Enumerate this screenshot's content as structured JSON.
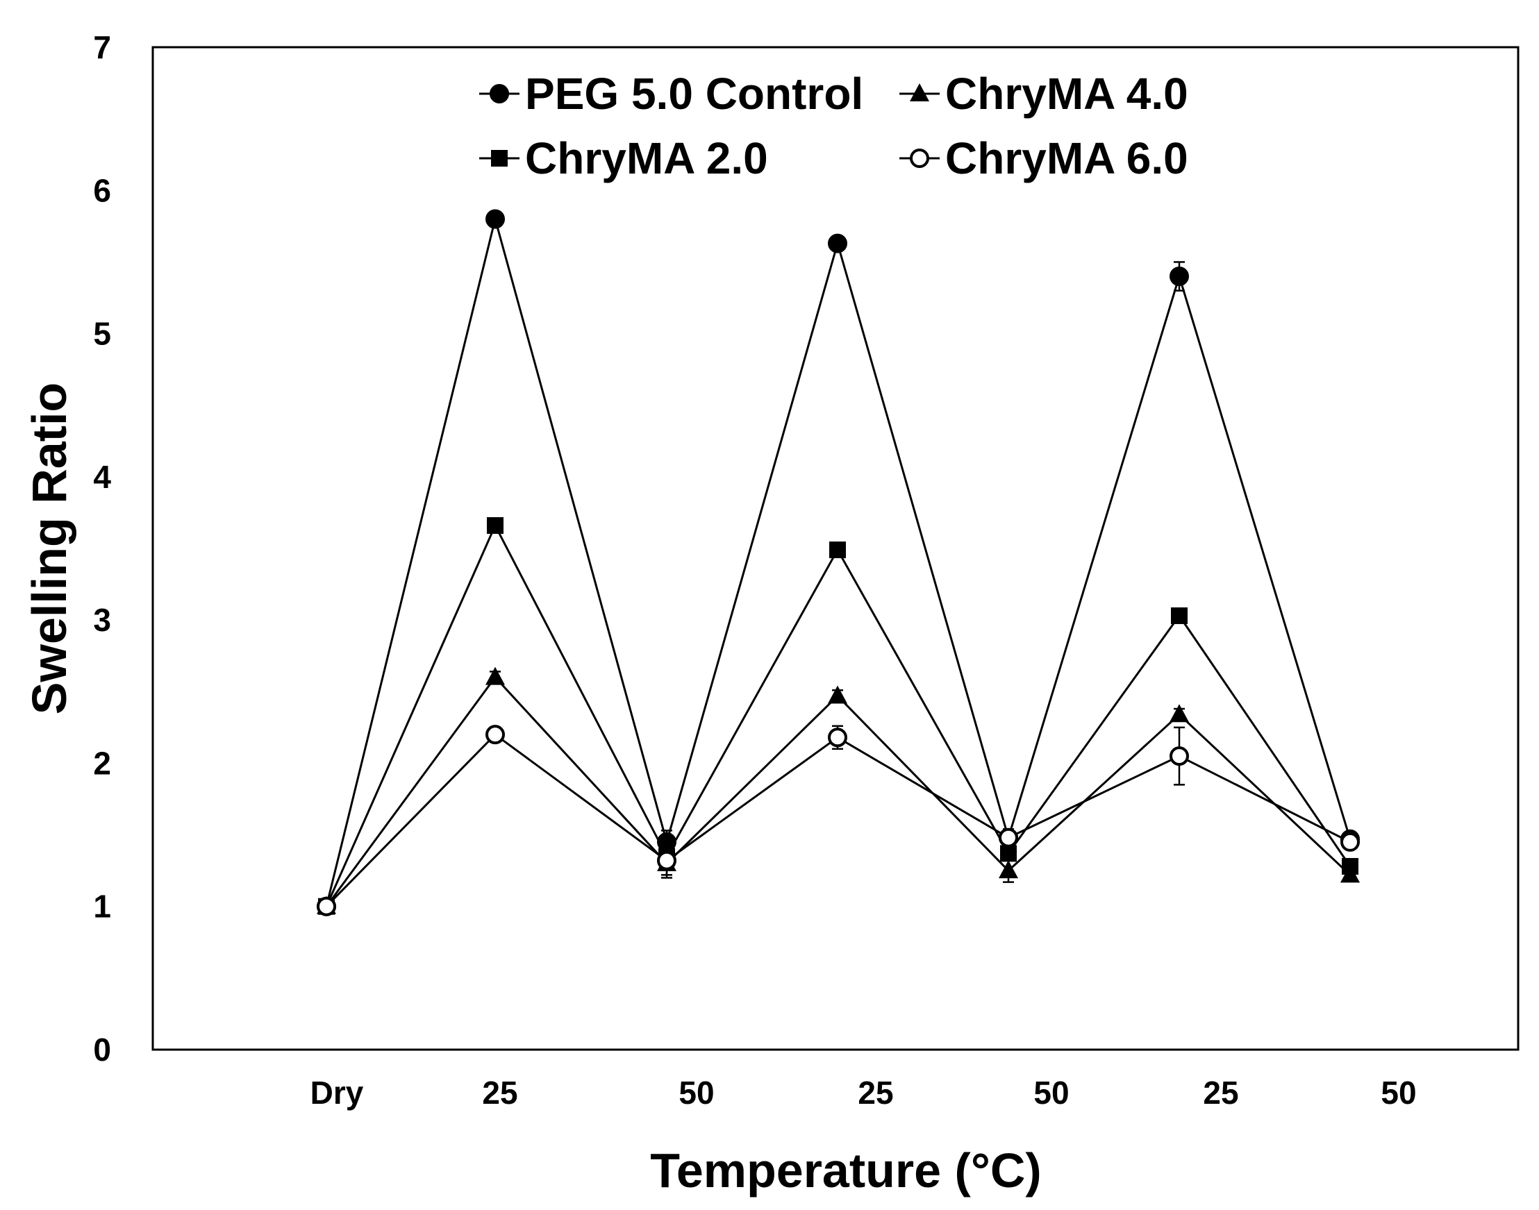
{
  "chart_data": {
    "type": "line",
    "title": "",
    "xlabel": "Temperature (°C)",
    "ylabel": "Swelling Ratio",
    "categories": [
      "Dry",
      "25",
      "50",
      "25",
      "50",
      "25",
      "50"
    ],
    "yticks": [
      "0",
      "1",
      "2",
      "3",
      "4",
      "5",
      "6",
      "7"
    ],
    "ylim": [
      0,
      7
    ],
    "grid": false,
    "legend_position": "top",
    "series": [
      {
        "name": "PEG 5.0 Control",
        "marker": "circle-filled",
        "values": [
          1.0,
          5.8,
          1.45,
          5.63,
          1.48,
          5.4,
          1.47
        ],
        "errors": [
          0.05,
          0.05,
          0.08,
          0.03,
          0.05,
          0.1,
          0.03
        ]
      },
      {
        "name": "ChryMA 2.0",
        "marker": "square-filled",
        "values": [
          1.0,
          3.66,
          1.35,
          3.49,
          1.37,
          3.03,
          1.28
        ],
        "errors": [
          0.05,
          0.04,
          0.05,
          0.05,
          0.05,
          0.04,
          0.03
        ]
      },
      {
        "name": "ChryMA 4.0",
        "marker": "triangle-filled",
        "values": [
          1.0,
          2.6,
          1.3,
          2.47,
          1.25,
          2.34,
          1.22
        ],
        "errors": [
          0.05,
          0.04,
          0.08,
          0.04,
          0.08,
          0.04,
          0.03
        ]
      },
      {
        "name": "ChryMA 6.0",
        "marker": "circle-open",
        "values": [
          1.0,
          2.2,
          1.32,
          2.18,
          1.48,
          2.05,
          1.45
        ],
        "errors": [
          0.05,
          0.04,
          0.12,
          0.08,
          0.06,
          0.2,
          0.04
        ]
      }
    ],
    "colors": {
      "line": "#000000",
      "background": "#ffffff"
    }
  }
}
